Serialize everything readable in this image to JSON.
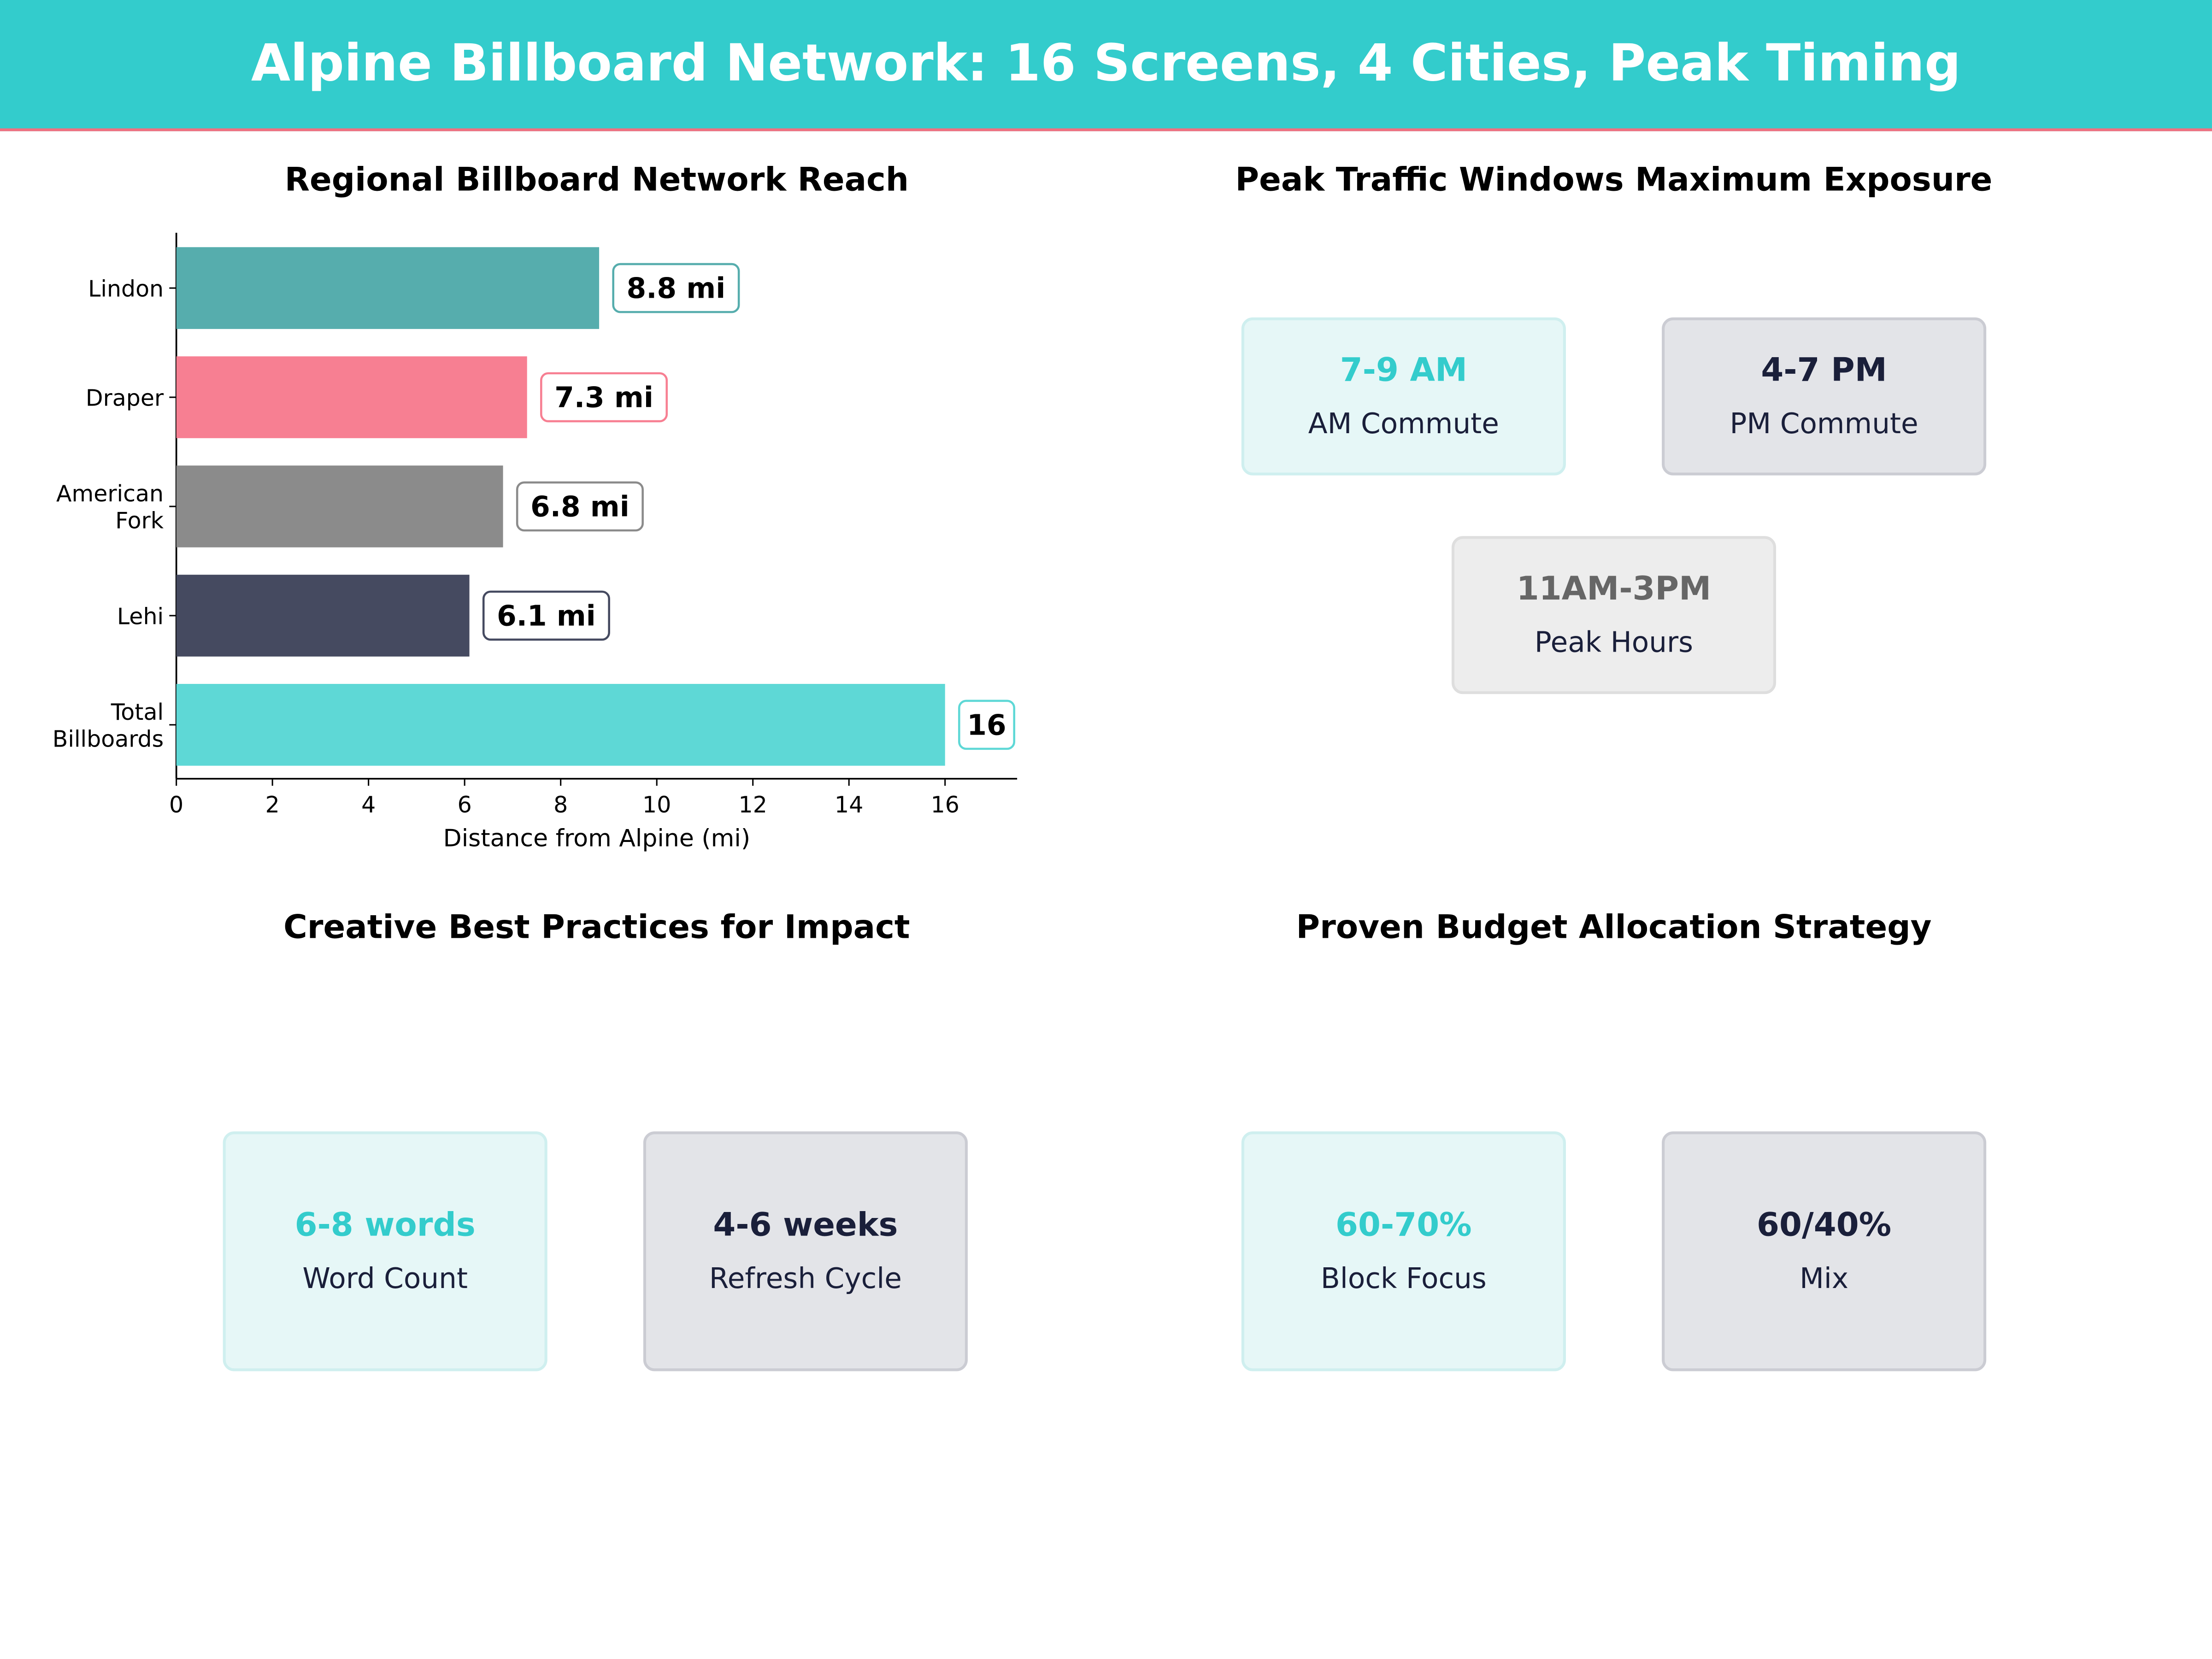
{
  "header": {
    "title": "Alpine Billboard Network: 16 Screens, 4 Cities, Peak Timing"
  },
  "colors": {
    "header_bg": "#33CCCC",
    "header_rule": "#F07080",
    "teal": "#33CCCC",
    "navy": "#1A1F3A"
  },
  "chart_data": {
    "type": "bar",
    "orientation": "horizontal",
    "title": "Regional Billboard Network Reach",
    "xlabel": "Distance from Alpine (mi)",
    "ylabel": "",
    "categories": [
      "Lindon",
      "Draper",
      "American Fork",
      "Lehi",
      "Total Billboards"
    ],
    "category_lines": [
      [
        "Lindon"
      ],
      [
        "Draper"
      ],
      [
        "American",
        "Fork"
      ],
      [
        "Lehi"
      ],
      [
        "Total",
        "Billboards"
      ]
    ],
    "values": [
      8.8,
      7.3,
      6.8,
      6.1,
      16
    ],
    "data_labels": [
      "8.8 mi",
      "7.3 mi",
      "6.8 mi",
      "6.1 mi",
      "16"
    ],
    "colors": [
      "#56ADAD",
      "#F77F92",
      "#8B8B8B",
      "#454A60",
      "#5ED8D6"
    ],
    "xlim": [
      0,
      17.5
    ],
    "xticks": [
      0,
      2,
      4,
      6,
      8,
      10,
      12,
      14,
      16
    ],
    "grid": false
  },
  "peak": {
    "title": "Peak Traffic Windows Maximum Exposure",
    "cards": [
      {
        "value": "7-9 AM",
        "label": "AM Commute"
      },
      {
        "value": "4-7 PM",
        "label": "PM Commute"
      },
      {
        "value": "11AM-3PM",
        "label": "Peak Hours"
      }
    ]
  },
  "creative": {
    "title": "Creative Best Practices for Impact",
    "cards": [
      {
        "value": "6-8 words",
        "label": "Word Count"
      },
      {
        "value": "4-6 weeks",
        "label": "Refresh Cycle"
      }
    ]
  },
  "budget": {
    "title": "Proven Budget Allocation Strategy",
    "cards": [
      {
        "value": "60-70%",
        "label": "Block Focus"
      },
      {
        "value": "60/40%",
        "label": "Mix"
      }
    ]
  }
}
